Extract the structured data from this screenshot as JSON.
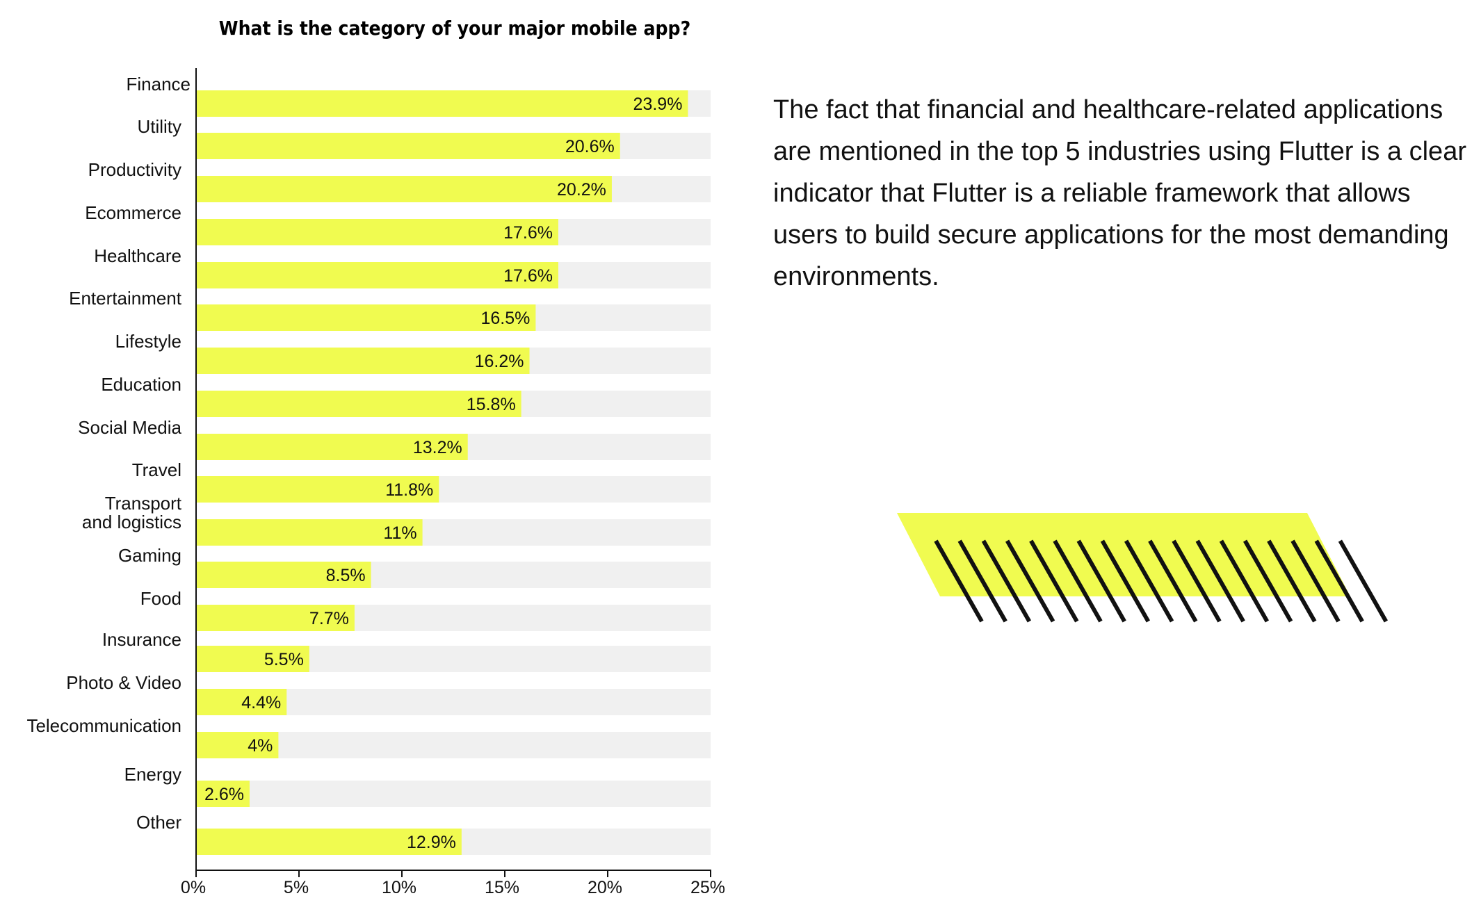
{
  "chart_data": {
    "type": "bar",
    "orientation": "horizontal",
    "title": "What is the category of your major mobile app?",
    "categories": [
      "Finance",
      "Utility",
      "Productivity",
      "Ecommerce",
      "Healthcare",
      "Entertainment",
      "Lifestyle",
      "Education",
      "Social Media",
      "Travel",
      "Transport and logistics",
      "Gaming",
      "Food",
      "Insurance",
      "Photo & Video",
      "Telecommunication",
      "Energy",
      "Other"
    ],
    "category_lines": [
      [
        "Finance"
      ],
      [
        "Utility"
      ],
      [
        "Productivity"
      ],
      [
        "Ecommerce"
      ],
      [
        "Healthcare"
      ],
      [
        "Entertainment"
      ],
      [
        "Lifestyle"
      ],
      [
        "Education"
      ],
      [
        "Social Media"
      ],
      [
        "Travel"
      ],
      [
        "Transport",
        "and logistics"
      ],
      [
        "Gaming"
      ],
      [
        "Food"
      ],
      [
        "Insurance"
      ],
      [
        "Photo & Video"
      ],
      [
        "Telecommunication"
      ],
      [
        "Energy"
      ],
      [
        "Other"
      ]
    ],
    "values": [
      23.9,
      20.6,
      20.2,
      17.6,
      17.6,
      16.5,
      16.2,
      15.8,
      13.2,
      11.8,
      11,
      8.5,
      7.7,
      5.5,
      4.4,
      4,
      2.6,
      12.9
    ],
    "value_labels": [
      "23.9%",
      "20.6%",
      "20.2%",
      "17.6%",
      "17.6%",
      "16.5%",
      "16.2%",
      "15.8%",
      "13.2%",
      "11.8%",
      "11%",
      "8.5%",
      "7.7%",
      "5.5%",
      "4.4%",
      "4%",
      "2.6%",
      "12.9%"
    ],
    "xlim": [
      0,
      25
    ],
    "xticks": [
      0,
      5,
      10,
      15,
      20,
      25
    ],
    "xtick_labels": [
      "0%",
      "5%",
      "10%",
      "15%",
      "20%",
      "25%"
    ],
    "xlabel": "",
    "ylabel": "",
    "grid": false,
    "bar_color": "#f0fb50",
    "track_color": "#f0f0f0"
  },
  "text": {
    "paragraph": "The fact that financial and healthcare-related applications are mentioned in the top 5 industries using Flutter is a clear indicator that Flutter is a reliable framework that allows users to build secure applications for the most demanding environments."
  },
  "colors": {
    "accent": "#f0fb50",
    "text": "#111111",
    "track": "#f0f0f0",
    "stripe": "#111111"
  }
}
